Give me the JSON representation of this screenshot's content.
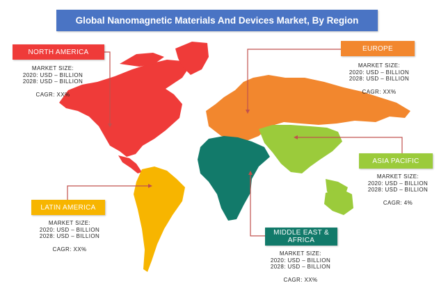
{
  "title": "Global Nanomagnetic Materials And Devices Market, By Region",
  "colors": {
    "title_bg": "#4a74c4",
    "north_america": "#ef3b39",
    "europe": "#f2872e",
    "asia_pacific": "#9bcb3b",
    "middle_east_africa": "#127a6a",
    "latin_america": "#f7b500",
    "connector": "#c0504d"
  },
  "regions": {
    "north_america": {
      "name": "NORTH AMERICA",
      "market_size_label": "MARKET SIZE:",
      "line_2020": "2020: USD – BILLION",
      "line_2028": "2028: USD – BILLION",
      "cagr": "CAGR: XX%"
    },
    "europe": {
      "name": "EUROPE",
      "market_size_label": "MARKET SIZE:",
      "line_2020": "2020: USD – BILLION",
      "line_2028": "2028: USD – BILLION",
      "cagr": "CAGR: XX%"
    },
    "asia_pacific": {
      "name": "ASIA PACIFIC",
      "market_size_label": "MARKET SIZE:",
      "line_2020": "2020: USD – BILLION",
      "line_2028": "2028: USD – BILLION",
      "cagr": "CAGR: 4%"
    },
    "latin_america": {
      "name": "LATIN AMERICA",
      "market_size_label": "MARKET SIZE:",
      "line_2020": "2020: USD – BILLION",
      "line_2028": "2028: USD – BILLION",
      "cagr": "CAGR: XX%"
    },
    "middle_east_africa": {
      "name": "MIDDLE EAST & AFRICA",
      "market_size_label": "MARKET SIZE:",
      "line_2020": "2020: USD – BILLION",
      "line_2028": "2028: USD – BILLION",
      "cagr": "CAGR: XX%"
    }
  }
}
